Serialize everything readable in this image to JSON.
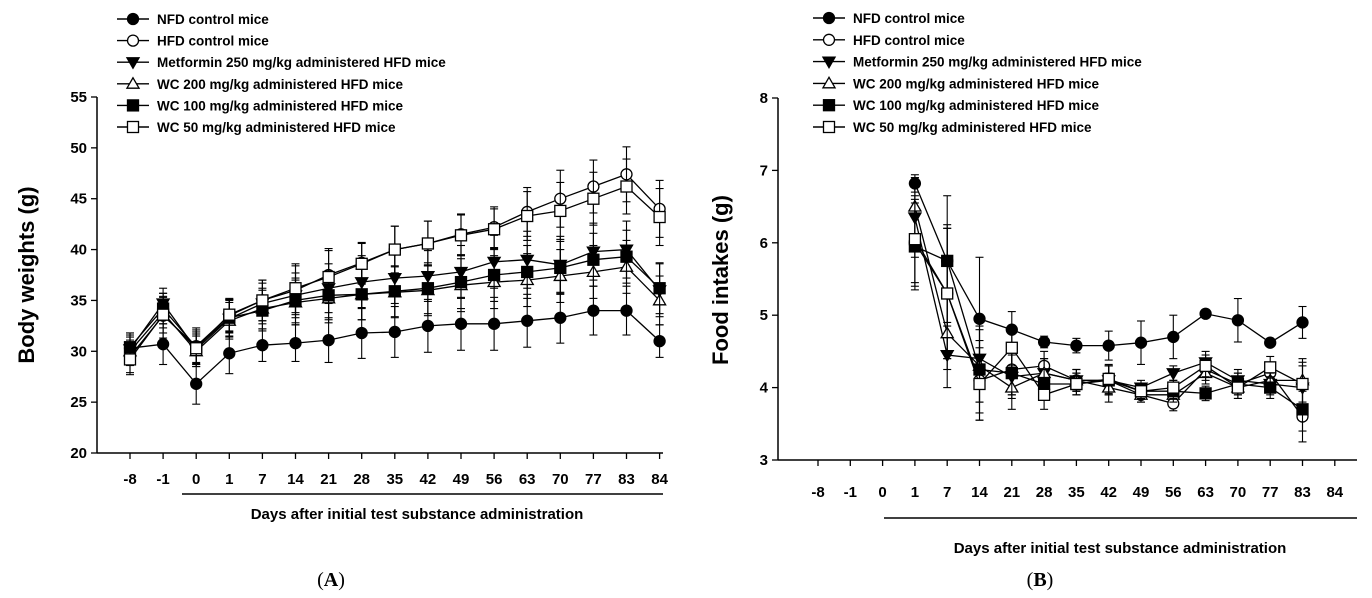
{
  "legend": [
    {
      "label": "NFD control mice",
      "marker": "circle",
      "fill": "#000000"
    },
    {
      "label": "HFD control mice",
      "marker": "circle",
      "fill": "#ffffff"
    },
    {
      "label": "Metformin 250 mg/kg administered HFD mice",
      "marker": "triangle-down",
      "fill": "#000000"
    },
    {
      "label": "WC 200 mg/kg administered HFD mice",
      "marker": "triangle-up",
      "fill": "#ffffff"
    },
    {
      "label": "WC 100 mg/kg administered HFD mice",
      "marker": "square",
      "fill": "#000000"
    },
    {
      "label": "WC 50 mg/kg administered HFD mice",
      "marker": "square",
      "fill": "#ffffff"
    }
  ],
  "chart_data": [
    {
      "type": "line",
      "panel_label": "A",
      "panel_label_letter": "A",
      "ylabel": "Body weights (g)",
      "xlabel": "Days after initial test substance administration",
      "categories": [
        "-8",
        "-1",
        "0",
        "1",
        "7",
        "14",
        "21",
        "28",
        "35",
        "42",
        "49",
        "56",
        "63",
        "70",
        "77",
        "83",
        "84"
      ],
      "yticks": [
        "20",
        "25",
        "30",
        "35",
        "40",
        "45",
        "50",
        "55"
      ],
      "ylim": [
        20,
        55
      ],
      "error_bars": true,
      "series": [
        {
          "name": "NFD control mice",
          "values": [
            30.3,
            30.7,
            26.8,
            29.8,
            30.6,
            30.8,
            31.1,
            31.8,
            31.9,
            32.5,
            32.7,
            32.7,
            33.0,
            33.3,
            34.0,
            34.0,
            31.0
          ],
          "err": [
            1.5,
            2.0,
            2.0,
            2.0,
            1.6,
            1.8,
            2.2,
            2.5,
            2.5,
            2.6,
            2.6,
            2.6,
            2.6,
            2.5,
            2.4,
            2.4,
            1.6
          ]
        },
        {
          "name": "HFD control mice",
          "values": [
            29.5,
            33.5,
            30.5,
            33.5,
            35.0,
            36.0,
            37.5,
            38.7,
            40.0,
            40.6,
            41.5,
            42.2,
            43.7,
            45.0,
            46.2,
            47.4,
            44.0
          ],
          "err": [
            1.6,
            2.2,
            1.8,
            1.6,
            2.0,
            2.4,
            2.6,
            2.0,
            2.3,
            2.2,
            2.0,
            2.0,
            2.4,
            2.8,
            2.6,
            2.7,
            2.8
          ]
        },
        {
          "name": "Metformin 250 mg/kg administered HFD mice",
          "values": [
            30.2,
            34.7,
            30.2,
            33.2,
            34.7,
            35.5,
            36.2,
            36.8,
            37.2,
            37.4,
            37.8,
            38.8,
            39.0,
            38.5,
            39.8,
            40.0,
            36.0
          ],
          "err": [
            1.4,
            1.5,
            1.5,
            1.8,
            2.0,
            2.2,
            2.4,
            2.6,
            2.5,
            2.5,
            2.6,
            2.6,
            2.8,
            2.8,
            2.8,
            2.8,
            2.6
          ]
        },
        {
          "name": "WC 200 mg/kg administered HFD mice",
          "values": [
            30.0,
            33.8,
            30.0,
            33.0,
            34.2,
            34.8,
            35.2,
            35.6,
            35.8,
            36.0,
            36.5,
            36.8,
            37.0,
            37.4,
            37.8,
            38.3,
            35.0
          ],
          "err": [
            1.4,
            1.5,
            1.5,
            1.8,
            2.0,
            2.2,
            2.4,
            2.5,
            2.5,
            2.5,
            2.6,
            2.6,
            2.6,
            2.6,
            2.6,
            2.6,
            2.4
          ]
        },
        {
          "name": "WC 100 mg/kg administered HFD mice",
          "values": [
            30.4,
            34.2,
            30.4,
            33.3,
            34.0,
            35.0,
            35.5,
            35.6,
            35.9,
            36.2,
            36.8,
            37.5,
            37.8,
            38.2,
            39.0,
            39.3,
            36.2
          ],
          "err": [
            1.4,
            1.5,
            1.5,
            1.8,
            2.0,
            2.2,
            2.4,
            2.5,
            2.5,
            2.5,
            2.6,
            2.6,
            2.6,
            2.6,
            2.6,
            2.6,
            2.5
          ]
        },
        {
          "name": "WC 50 mg/kg administered HFD mice",
          "values": [
            29.2,
            33.6,
            30.3,
            33.6,
            35.0,
            36.2,
            37.3,
            38.6,
            40.0,
            40.6,
            41.4,
            42.0,
            43.3,
            43.8,
            45.0,
            46.2,
            43.2
          ],
          "err": [
            1.5,
            1.8,
            1.8,
            1.6,
            2.0,
            2.4,
            2.6,
            2.0,
            2.3,
            2.2,
            2.0,
            2.0,
            2.4,
            2.8,
            2.6,
            2.7,
            2.8
          ]
        }
      ]
    },
    {
      "type": "line",
      "panel_label": "B",
      "panel_label_letter": "B",
      "ylabel": "Food intakes (g)",
      "xlabel": "Days after initial test substance administration",
      "categories": [
        "-8",
        "-1",
        "0",
        "1",
        "7",
        "14",
        "21",
        "28",
        "35",
        "42",
        "49",
        "56",
        "63",
        "70",
        "77",
        "83",
        "84"
      ],
      "yticks": [
        "3",
        "4",
        "5",
        "6",
        "7",
        "8"
      ],
      "ylim": [
        3,
        8
      ],
      "error_bars": true,
      "series": [
        {
          "name": "NFD control mice",
          "values": [
            null,
            null,
            null,
            6.82,
            5.75,
            4.95,
            4.8,
            4.63,
            4.58,
            4.58,
            4.62,
            4.7,
            5.02,
            4.93,
            4.62,
            4.9,
            null
          ],
          "err": [
            null,
            null,
            null,
            0.12,
            0.9,
            0.85,
            0.25,
            0.08,
            0.1,
            0.2,
            0.3,
            0.3,
            0.05,
            0.3,
            0.05,
            0.22,
            null
          ]
        },
        {
          "name": "HFD control mice",
          "values": [
            null,
            null,
            null,
            6.0,
            5.3,
            4.1,
            4.25,
            4.3,
            4.1,
            4.1,
            3.9,
            3.78,
            4.25,
            4.05,
            4.2,
            3.6,
            null
          ],
          "err": [
            null,
            null,
            null,
            0.6,
            0.9,
            0.55,
            0.35,
            0.2,
            0.15,
            0.2,
            0.1,
            0.1,
            0.15,
            0.15,
            0.15,
            0.35,
            null
          ]
        },
        {
          "name": "Metformin 250 mg/kg administered HFD mice",
          "values": [
            null,
            null,
            null,
            6.35,
            4.45,
            4.4,
            4.15,
            4.2,
            4.1,
            4.1,
            4.0,
            4.2,
            4.35,
            4.1,
            4.05,
            4.0,
            null
          ],
          "err": [
            null,
            null,
            null,
            0.55,
            0.45,
            0.6,
            0.3,
            0.2,
            0.15,
            0.2,
            0.1,
            0.1,
            0.15,
            0.15,
            0.15,
            0.3,
            null
          ]
        },
        {
          "name": "WC 200 mg/kg administered HFD mice",
          "values": [
            null,
            null,
            null,
            6.5,
            4.75,
            4.3,
            4.0,
            4.2,
            4.1,
            4.0,
            3.9,
            3.9,
            4.2,
            4.0,
            4.1,
            4.1,
            null
          ],
          "err": [
            null,
            null,
            null,
            0.4,
            0.5,
            0.5,
            0.3,
            0.2,
            0.15,
            0.2,
            0.1,
            0.1,
            0.15,
            0.15,
            0.15,
            0.3,
            null
          ]
        },
        {
          "name": "WC 100 mg/kg administered HFD mice",
          "values": [
            null,
            null,
            null,
            5.95,
            5.75,
            4.25,
            4.2,
            4.05,
            4.05,
            4.1,
            3.95,
            3.95,
            3.92,
            4.05,
            4.0,
            3.7,
            null
          ],
          "err": [
            null,
            null,
            null,
            0.6,
            0.5,
            0.6,
            0.3,
            0.2,
            0.15,
            0.2,
            0.1,
            0.1,
            0.1,
            0.15,
            0.15,
            0.3,
            null
          ]
        },
        {
          "name": "WC 50 mg/kg administered HFD mice",
          "values": [
            null,
            null,
            null,
            6.05,
            5.3,
            4.05,
            4.55,
            3.9,
            4.05,
            4.12,
            3.95,
            4.0,
            4.3,
            4.0,
            4.28,
            4.05,
            null
          ],
          "err": [
            null,
            null,
            null,
            0.6,
            0.9,
            0.5,
            0.3,
            0.2,
            0.15,
            0.2,
            0.1,
            0.1,
            0.15,
            0.15,
            0.15,
            0.3,
            null
          ]
        }
      ]
    }
  ]
}
